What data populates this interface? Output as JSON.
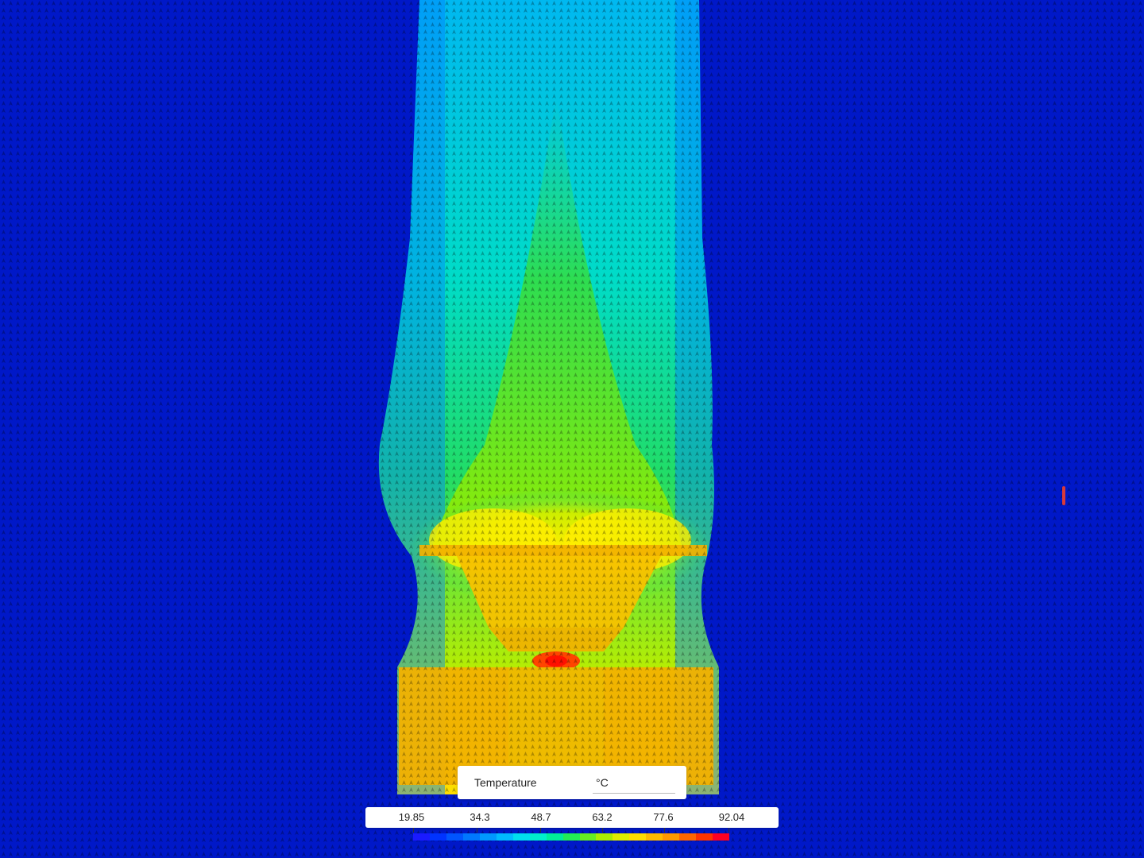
{
  "legend": {
    "title": "Temperature",
    "unit": "°C",
    "ticks": [
      "19.85",
      "34.3",
      "48.7",
      "63.2",
      "77.6",
      "92.04"
    ],
    "colormap": [
      "#1a1aff",
      "#0033ff",
      "#0055ff",
      "#0077ff",
      "#0099ff",
      "#00bbff",
      "#00ddee",
      "#00eecc",
      "#00ee99",
      "#22ee55",
      "#66ee22",
      "#aaee00",
      "#ddee00",
      "#ffdd00",
      "#ffbb00",
      "#ff9900",
      "#ff6600",
      "#ff3300",
      "#ff0022"
    ]
  },
  "colors": {
    "background": "#0018c8",
    "plume_cool": "#00aaff",
    "plume_mid": "#00dd66",
    "plume_warm": "#ffee00",
    "solid_body": "#f2b100",
    "hotspot": "#ff3300"
  }
}
